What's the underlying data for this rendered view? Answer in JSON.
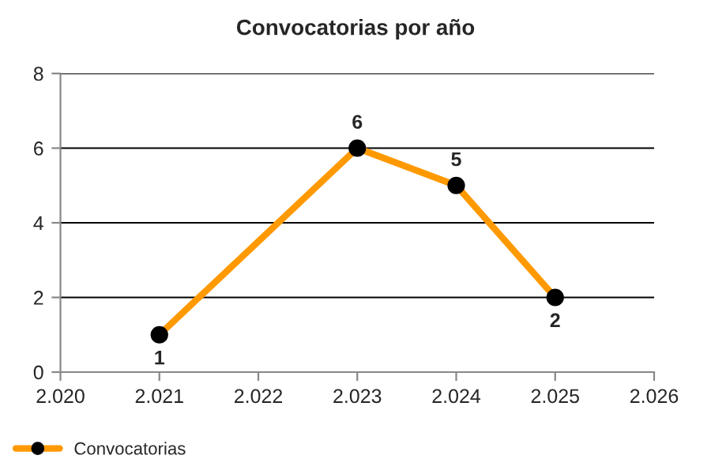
{
  "chart_data": {
    "type": "line",
    "title": "Convocatorias por año",
    "x": [
      2021,
      2022,
      2023,
      2024,
      2025
    ],
    "series": [
      {
        "name": "Convocatorias",
        "color": "#ff9900",
        "values": [
          1,
          null,
          6,
          5,
          2
        ]
      }
    ],
    "xlim": [
      2020,
      2026
    ],
    "xticks": [
      {
        "value": 2020,
        "label": "2.020"
      },
      {
        "value": 2021,
        "label": "2.021"
      },
      {
        "value": 2022,
        "label": "2.022"
      },
      {
        "value": 2023,
        "label": "2.023"
      },
      {
        "value": 2024,
        "label": "2.024"
      },
      {
        "value": 2025,
        "label": "2.025"
      },
      {
        "value": 2026,
        "label": "2.026"
      }
    ],
    "ylim": [
      0,
      8
    ],
    "yticks": [
      0,
      2,
      4,
      6,
      8
    ],
    "grid": "y",
    "legend": "bottom left",
    "marker": "circle",
    "line_style": "solid",
    "data_labels": true
  }
}
